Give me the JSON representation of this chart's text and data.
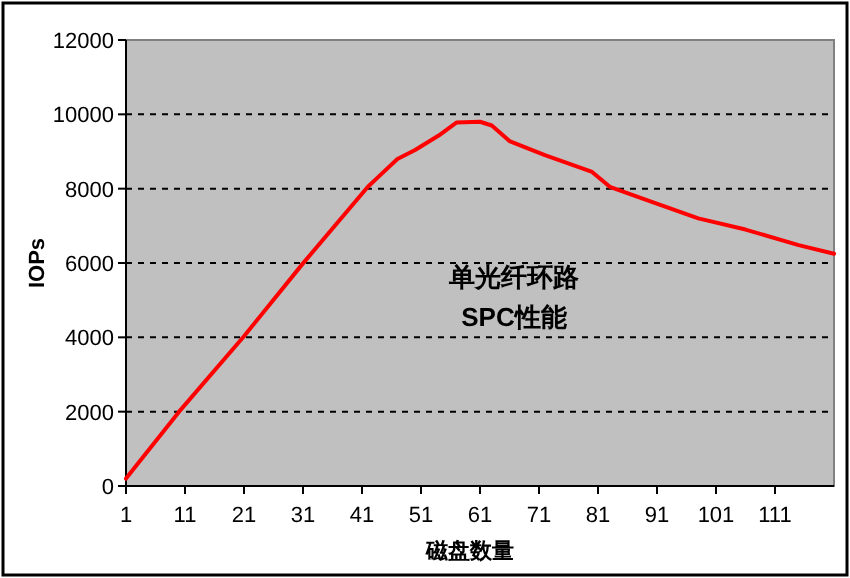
{
  "chart_data": {
    "type": "line",
    "xlabel": "磁盘数量",
    "ylabel": "IOPs",
    "annotations": [
      "单光纤环路",
      "SPC性能"
    ],
    "x": [
      1,
      10,
      21,
      31,
      42,
      44,
      47,
      50,
      54,
      57,
      61,
      63,
      66,
      72,
      80,
      83,
      90,
      98,
      106,
      115,
      121
    ],
    "series": [
      {
        "color": "#ff0000",
        "values": [
          200,
          2000,
          4030,
          5990,
          8050,
          8350,
          8800,
          9040,
          9430,
          9780,
          9800,
          9700,
          9280,
          8900,
          8450,
          8050,
          7650,
          7200,
          6900,
          6480,
          6250
        ]
      }
    ],
    "xlim": [
      1,
      121
    ],
    "xticks": [
      1,
      11,
      21,
      31,
      41,
      51,
      61,
      71,
      81,
      91,
      101,
      111
    ],
    "ylim": [
      0,
      12000
    ],
    "yticks": [
      0,
      2000,
      4000,
      6000,
      8000,
      10000,
      12000
    ],
    "grid": "y",
    "marker": "none",
    "line_style": "solid"
  }
}
